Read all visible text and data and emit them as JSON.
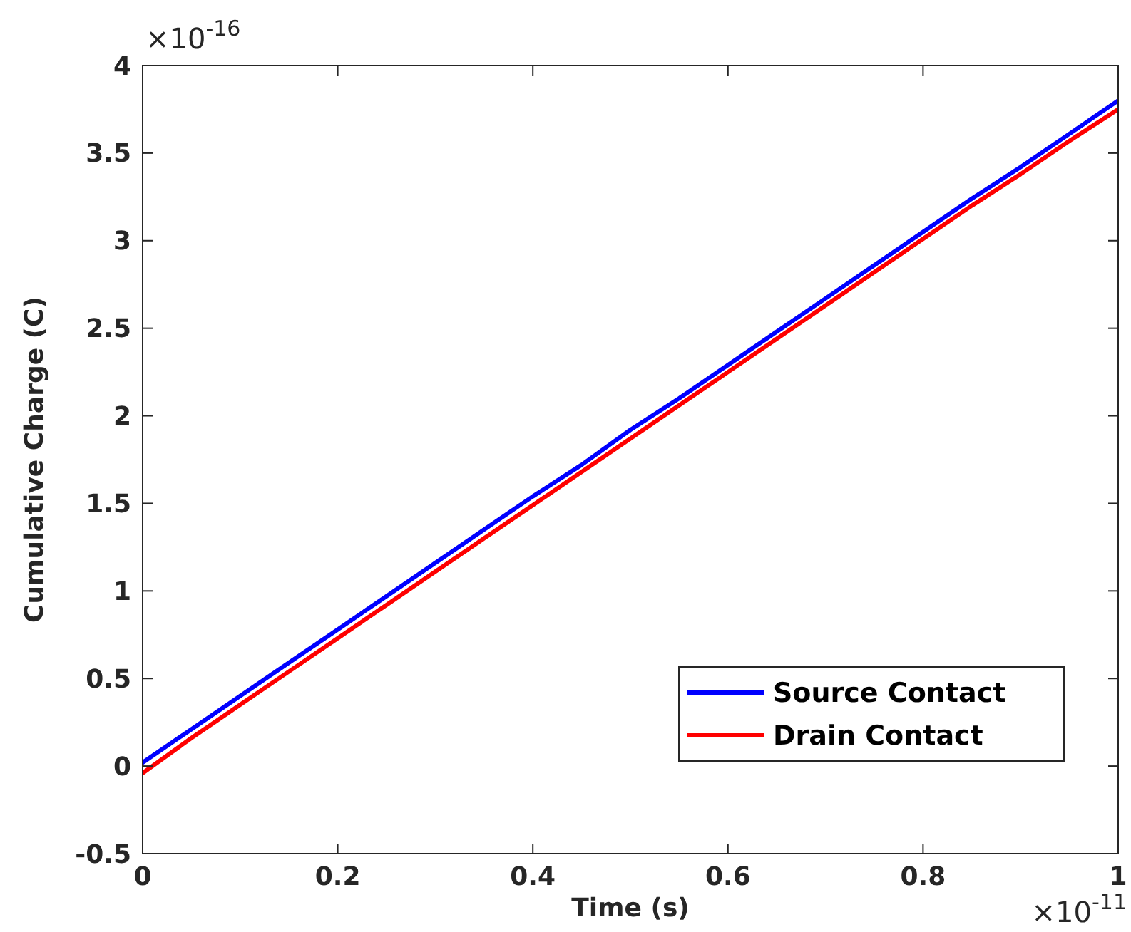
{
  "chart_data": {
    "type": "line",
    "xlabel": "Time (s)",
    "ylabel": "Cumulative Charge (C)",
    "x": [
      0,
      0.05,
      0.1,
      0.15,
      0.2,
      0.25,
      0.3,
      0.35,
      0.4,
      0.45,
      0.5,
      0.55,
      0.6,
      0.65,
      0.7,
      0.75,
      0.8,
      0.85,
      0.9,
      0.95,
      1
    ],
    "series": [
      {
        "name": "Source Contact",
        "color": "#0000ff",
        "values": [
          0.02,
          0.21,
          0.4,
          0.59,
          0.78,
          0.97,
          1.16,
          1.35,
          1.54,
          1.72,
          1.92,
          2.1,
          2.29,
          2.48,
          2.67,
          2.86,
          3.05,
          3.24,
          3.42,
          3.61,
          3.8
        ]
      },
      {
        "name": "Drain Contact",
        "color": "#ff0000",
        "values": [
          -0.04,
          0.16,
          0.35,
          0.54,
          0.73,
          0.92,
          1.11,
          1.3,
          1.49,
          1.68,
          1.87,
          2.06,
          2.25,
          2.44,
          2.63,
          2.82,
          3.01,
          3.2,
          3.38,
          3.57,
          3.75
        ]
      }
    ],
    "xlim": [
      0,
      1
    ],
    "xticks": [
      0,
      0.2,
      0.4,
      0.6,
      0.8,
      1
    ],
    "ylim": [
      -0.5,
      4
    ],
    "yticks": [
      -0.5,
      0,
      0.5,
      1,
      1.5,
      2,
      2.5,
      3,
      3.5,
      4
    ],
    "annotations": [
      "×10$^{-11}$",
      "×10$^{-16}$"
    ],
    "legend": "bottom right",
    "grid": false,
    "line_style": "solid"
  }
}
